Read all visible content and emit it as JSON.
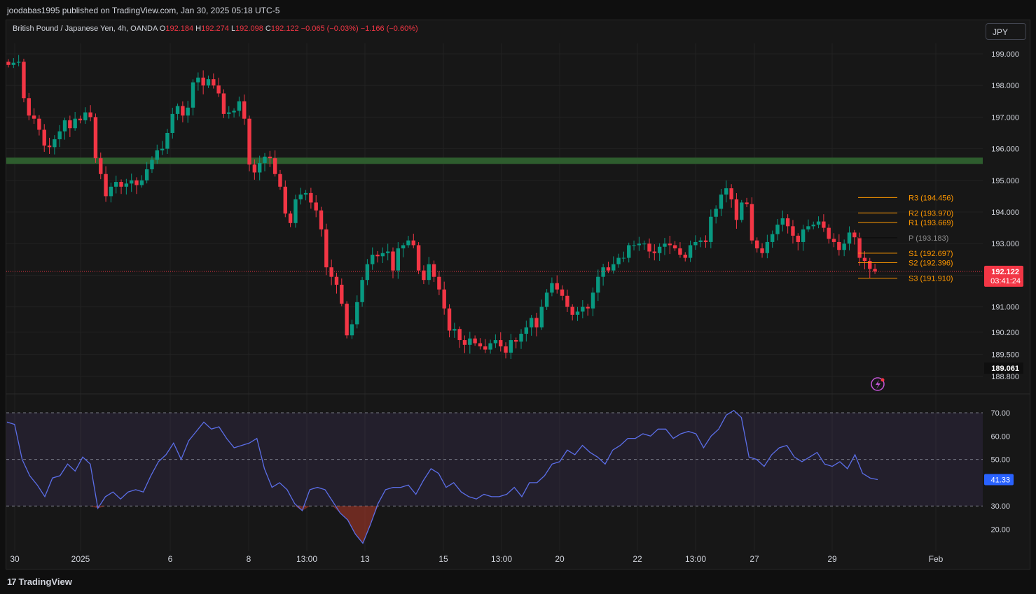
{
  "header": {
    "published_by": "joodabas1995 published on TradingView.com, Jan 30, 2025 05:18 UTC-5"
  },
  "legend": {
    "symbol": "British Pound / Japanese Yen, 4h, OANDA",
    "o_label": "O",
    "o_value": "192.184",
    "h_label": "H",
    "h_value": "192.274",
    "l_label": "L",
    "l_value": "192.098",
    "c_label": "C",
    "c_value": "192.122",
    "change": "−0.065 (−0.03%)",
    "change2": "−1.166 (−0.60%)"
  },
  "currency_button": "JPY",
  "colors": {
    "up": "#089981",
    "down": "#f23645",
    "zone": "#2e5d2e",
    "pivot": "#ff9800",
    "rsi": "#5b6ee8",
    "rsi_band": "#7e57c2",
    "background": "#171717"
  },
  "chart_data": [
    {
      "type": "candlestick",
      "symbol": "GBP/JPY",
      "interval": "4h",
      "price_axis": {
        "ticks": [
          "199.000",
          "198.000",
          "197.000",
          "196.000",
          "195.000",
          "194.000",
          "193.000",
          "191.000",
          "190.200",
          "189.500",
          "188.800"
        ],
        "last_price": "192.122",
        "countdown": "03:41:24",
        "crosshair_label": "189.061"
      },
      "x_axis": {
        "ticks": [
          "30",
          "2025",
          "6",
          "8",
          "13:00",
          "13",
          "15",
          "13:00",
          "20",
          "22",
          "13:00",
          "27",
          "29",
          "Feb"
        ]
      },
      "closes": [
        198.65,
        198.72,
        198.75,
        197.6,
        197.05,
        196.95,
        196.6,
        196.1,
        196.05,
        196.3,
        196.55,
        196.9,
        196.65,
        196.95,
        196.9,
        197.15,
        197.0,
        195.7,
        195.2,
        194.5,
        194.8,
        194.95,
        194.8,
        194.9,
        195.0,
        194.85,
        195.0,
        195.35,
        195.65,
        195.95,
        196.0,
        196.5,
        197.1,
        197.35,
        197.05,
        197.3,
        198.1,
        198.25,
        198.0,
        198.2,
        198.0,
        197.75,
        197.1,
        197.15,
        197.2,
        197.5,
        196.95,
        195.5,
        195.25,
        195.55,
        195.75,
        195.7,
        195.2,
        194.8,
        193.95,
        193.65,
        194.4,
        194.55,
        194.6,
        194.3,
        194.05,
        193.45,
        192.25,
        191.95,
        191.7,
        191.1,
        190.1,
        190.45,
        191.15,
        191.85,
        192.35,
        192.65,
        192.6,
        192.7,
        192.75,
        192.15,
        192.85,
        192.95,
        193.1,
        192.95,
        192.15,
        191.85,
        192.35,
        191.95,
        191.55,
        190.95,
        190.25,
        190.3,
        189.95,
        189.8,
        190.0,
        189.85,
        189.75,
        189.65,
        189.85,
        189.95,
        189.75,
        189.55,
        189.95,
        189.9,
        190.15,
        190.35,
        190.65,
        190.35,
        191.0,
        191.45,
        191.75,
        191.55,
        191.35,
        191.0,
        190.75,
        190.85,
        191.0,
        190.95,
        191.45,
        191.95,
        192.25,
        192.15,
        192.35,
        192.55,
        192.55,
        192.95,
        192.95,
        193.0,
        193.0,
        192.75,
        192.7,
        192.9,
        193.0,
        192.95,
        192.85,
        192.65,
        192.55,
        192.95,
        193.05,
        193.1,
        193.05,
        193.85,
        194.1,
        194.55,
        194.75,
        194.4,
        193.75,
        194.3,
        194.25,
        193.1,
        192.85,
        192.7,
        193.05,
        193.3,
        193.6,
        193.8,
        193.55,
        193.25,
        193.05,
        193.45,
        193.55,
        193.6,
        193.7,
        193.5,
        193.15,
        193.05,
        192.8,
        193.0,
        193.35,
        193.2,
        192.55,
        192.45,
        192.2,
        192.12
      ],
      "resistance_zone": {
        "from": 195.52,
        "to": 195.72
      },
      "pivot_levels": [
        {
          "label": "R3",
          "value": "194.456"
        },
        {
          "label": "R2",
          "value": "193.970"
        },
        {
          "label": "R1",
          "value": "193.669"
        },
        {
          "label": "P",
          "value": "193.183"
        },
        {
          "label": "S1",
          "value": "192.697"
        },
        {
          "label": "S2",
          "value": "192.396"
        },
        {
          "label": "S3",
          "value": "191.910"
        }
      ]
    },
    {
      "type": "line",
      "title": "RSI",
      "y_ticks": [
        "70.00",
        "60.00",
        "50.00",
        "30.00",
        "20.00"
      ],
      "bands": [
        30,
        50,
        70
      ],
      "last_value": "41.33",
      "values": [
        66,
        65,
        50,
        43,
        39,
        34,
        42,
        43,
        48,
        45,
        51,
        48,
        29,
        34,
        36,
        33,
        36,
        37,
        36,
        43,
        49,
        52,
        57,
        50,
        58,
        62,
        66,
        63,
        64,
        59,
        55,
        56,
        57,
        59,
        46,
        38,
        40,
        37,
        31,
        28,
        37,
        38,
        37,
        32,
        27,
        24,
        18,
        14,
        22,
        31,
        37,
        38,
        38,
        39,
        35,
        41,
        46,
        44,
        38,
        40,
        36,
        34,
        33,
        35,
        34,
        34,
        35,
        38,
        34,
        40,
        40,
        43,
        48,
        49,
        54,
        52,
        56,
        53,
        51,
        48,
        54,
        56,
        59,
        59,
        61,
        60,
        63,
        63,
        59,
        61,
        62,
        61,
        55,
        60,
        63,
        69,
        71,
        68,
        51,
        50,
        47,
        52,
        55,
        56,
        51,
        49,
        51,
        53,
        48,
        47,
        49,
        46,
        52,
        44,
        42,
        41.33
      ]
    }
  ],
  "footer": {
    "brand": "TradingView"
  }
}
